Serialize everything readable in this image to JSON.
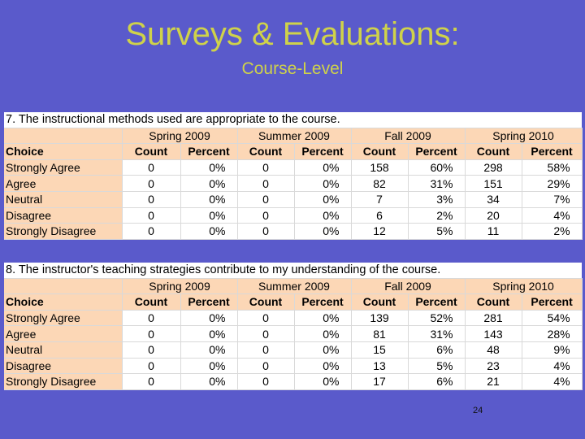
{
  "slide": {
    "title": "Surveys & Evaluations:",
    "subtitle": "Course-Level",
    "page_number": "24"
  },
  "tables": [
    {
      "question": "7. The instructional methods used are appropriate to the course.",
      "terms": [
        "Spring 2009",
        "Summer 2009",
        "Fall 2009",
        "Spring 2010"
      ],
      "headers": {
        "choice": "Choice",
        "count": "Count",
        "percent": "Percent"
      },
      "rows": [
        {
          "choice": "Strongly Agree",
          "values": [
            "0",
            "0%",
            "0",
            "0%",
            "158",
            "60%",
            "298",
            "58%"
          ]
        },
        {
          "choice": "Agree",
          "values": [
            "0",
            "0%",
            "0",
            "0%",
            "82",
            "31%",
            "151",
            "29%"
          ]
        },
        {
          "choice": "Neutral",
          "values": [
            "0",
            "0%",
            "0",
            "0%",
            "7",
            "3%",
            "34",
            "7%"
          ]
        },
        {
          "choice": "Disagree",
          "values": [
            "0",
            "0%",
            "0",
            "0%",
            "6",
            "2%",
            "20",
            "4%"
          ]
        },
        {
          "choice": "Strongly Disagree",
          "values": [
            "0",
            "0%",
            "0",
            "0%",
            "12",
            "5%",
            "11",
            "2%"
          ]
        }
      ]
    },
    {
      "question": "8. The instructor's teaching strategies contribute to my understanding of the course.",
      "terms": [
        "Spring 2009",
        "Summer 2009",
        "Fall 2009",
        "Spring 2010"
      ],
      "headers": {
        "choice": "Choice",
        "count": "Count",
        "percent": "Percent"
      },
      "rows": [
        {
          "choice": "Strongly Agree",
          "values": [
            "0",
            "0%",
            "0",
            "0%",
            "139",
            "52%",
            "281",
            "54%"
          ]
        },
        {
          "choice": "Agree",
          "values": [
            "0",
            "0%",
            "0",
            "0%",
            "81",
            "31%",
            "143",
            "28%"
          ]
        },
        {
          "choice": "Neutral",
          "values": [
            "0",
            "0%",
            "0",
            "0%",
            "15",
            "6%",
            "48",
            "9%"
          ]
        },
        {
          "choice": "Disagree",
          "values": [
            "0",
            "0%",
            "0",
            "0%",
            "13",
            "5%",
            "23",
            "4%"
          ]
        },
        {
          "choice": "Strongly Disagree",
          "values": [
            "0",
            "0%",
            "0",
            "0%",
            "17",
            "6%",
            "21",
            "4%"
          ]
        }
      ]
    }
  ]
}
